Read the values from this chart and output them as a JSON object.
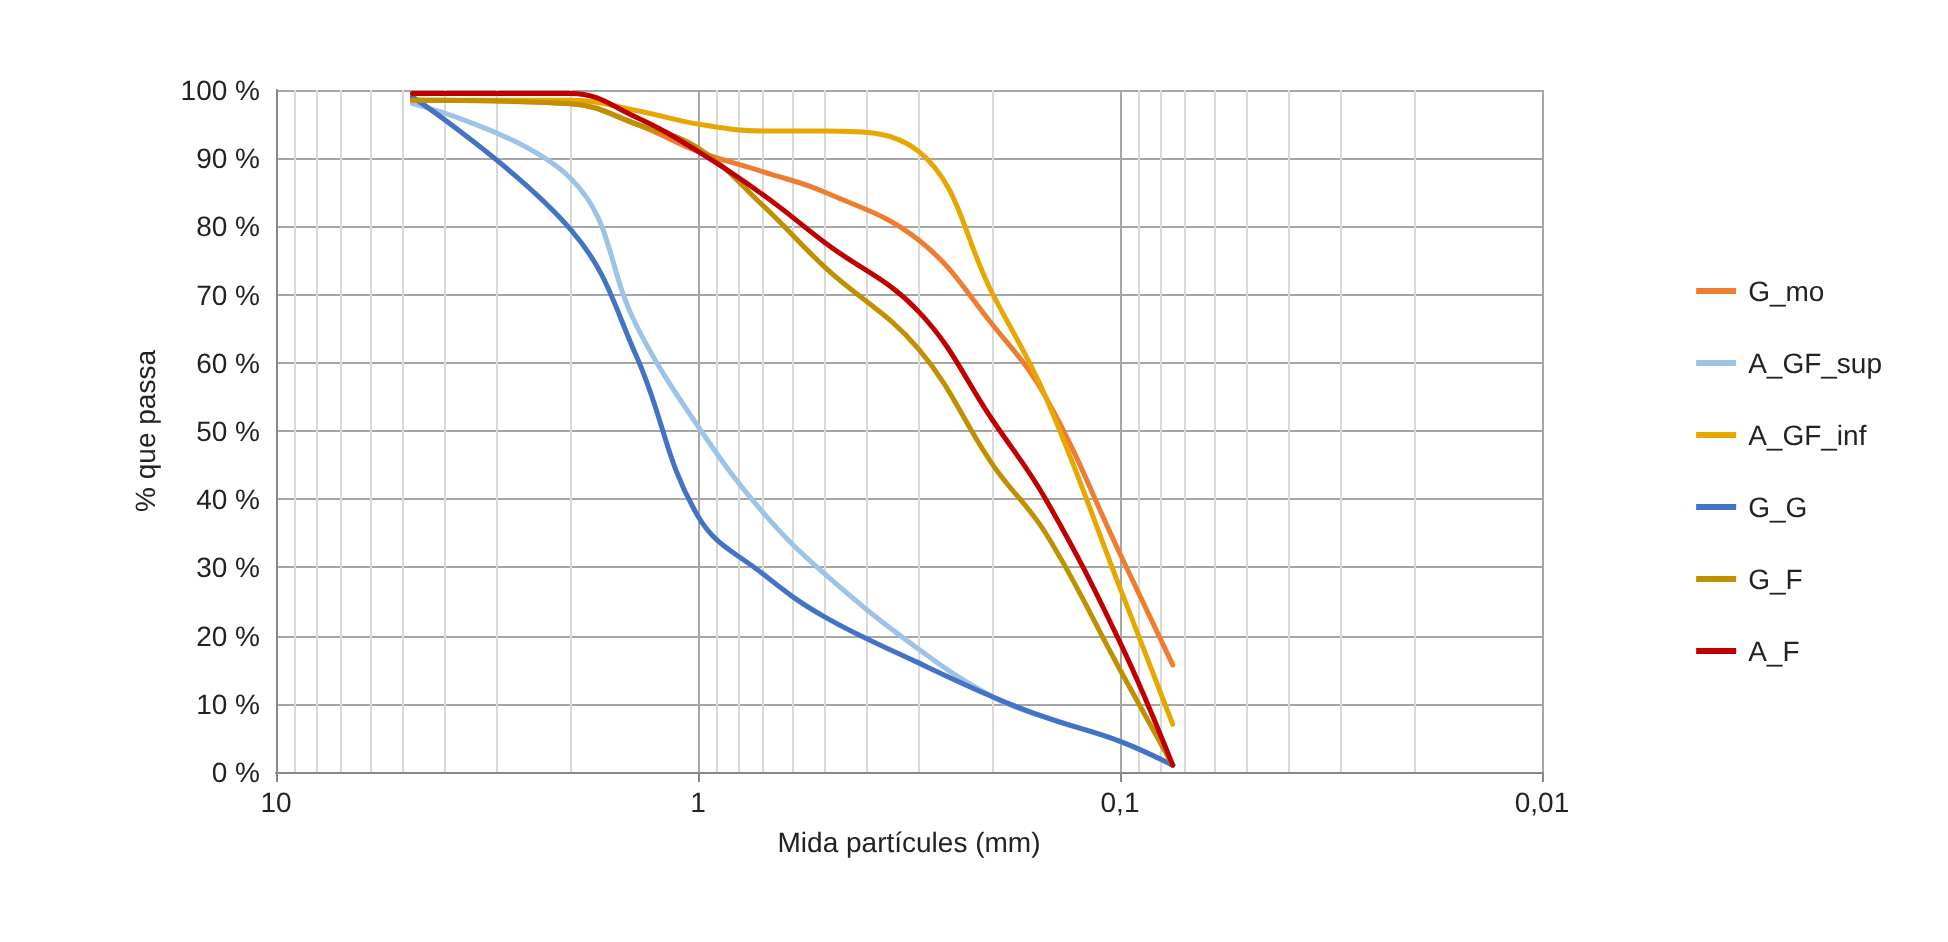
{
  "chart_data": {
    "type": "line",
    "xlabel": "Mida partícules (mm)",
    "ylabel": "% que passa",
    "log": "x",
    "xlim": [
      10,
      0.01
    ],
    "xticks": [
      {
        "value": 10,
        "label": "10"
      },
      {
        "value": 1,
        "label": "1"
      },
      {
        "value": 0.1,
        "label": "0,1"
      },
      {
        "value": 0.01,
        "label": "0,01"
      }
    ],
    "ylim": [
      0,
      100
    ],
    "yticks": [
      {
        "value": 0,
        "label": "0 %"
      },
      {
        "value": 10,
        "label": "10 %"
      },
      {
        "value": 20,
        "label": "20 %"
      },
      {
        "value": 30,
        "label": "30 %"
      },
      {
        "value": 40,
        "label": "40 %"
      },
      {
        "value": 50,
        "label": "50 %"
      },
      {
        "value": 60,
        "label": "60 %"
      },
      {
        "value": 70,
        "label": "70 %"
      },
      {
        "value": 80,
        "label": "80 %"
      },
      {
        "value": 90,
        "label": "90 %"
      },
      {
        "value": 100,
        "label": "100 %"
      }
    ],
    "grid": true,
    "legend": "right",
    "marker": "none",
    "line_style": "solid",
    "x": [
      4.75,
      2,
      1.4,
      1,
      0.7,
      0.5,
      0.3,
      0.2,
      0.15,
      0.1,
      0.075
    ],
    "series": [
      {
        "name": "G_mo",
        "color": "#ed7d31",
        "values": [
          98.5,
          98,
          95,
          91,
          88,
          85,
          78,
          65.5,
          55,
          32,
          15.7
        ]
      },
      {
        "name": "A_GF_sup",
        "color": "#9dc3e6",
        "values": [
          98,
          87,
          65.5,
          50.7,
          38,
          29,
          18,
          11,
          8,
          4.5,
          1
        ]
      },
      {
        "name": "A_GF_inf",
        "color": "#e6a800",
        "values": [
          98.5,
          98.5,
          97,
          95,
          94,
          94,
          91,
          70,
          55,
          27,
          7
        ]
      },
      {
        "name": "G_G",
        "color": "#4472c4",
        "values": [
          99,
          79.5,
          61,
          37.5,
          29,
          22.7,
          16,
          11,
          8,
          4.5,
          1
        ]
      },
      {
        "name": "G_F",
        "color": "#bf9000",
        "values": [
          98.5,
          98,
          95,
          91.5,
          83,
          74,
          62,
          45,
          35,
          15,
          1
        ]
      },
      {
        "name": "A_F",
        "color": "#c00000",
        "values": [
          99.5,
          99.5,
          96,
          91,
          84.6,
          77.6,
          67.5,
          51.5,
          40,
          19,
          1
        ]
      }
    ]
  }
}
